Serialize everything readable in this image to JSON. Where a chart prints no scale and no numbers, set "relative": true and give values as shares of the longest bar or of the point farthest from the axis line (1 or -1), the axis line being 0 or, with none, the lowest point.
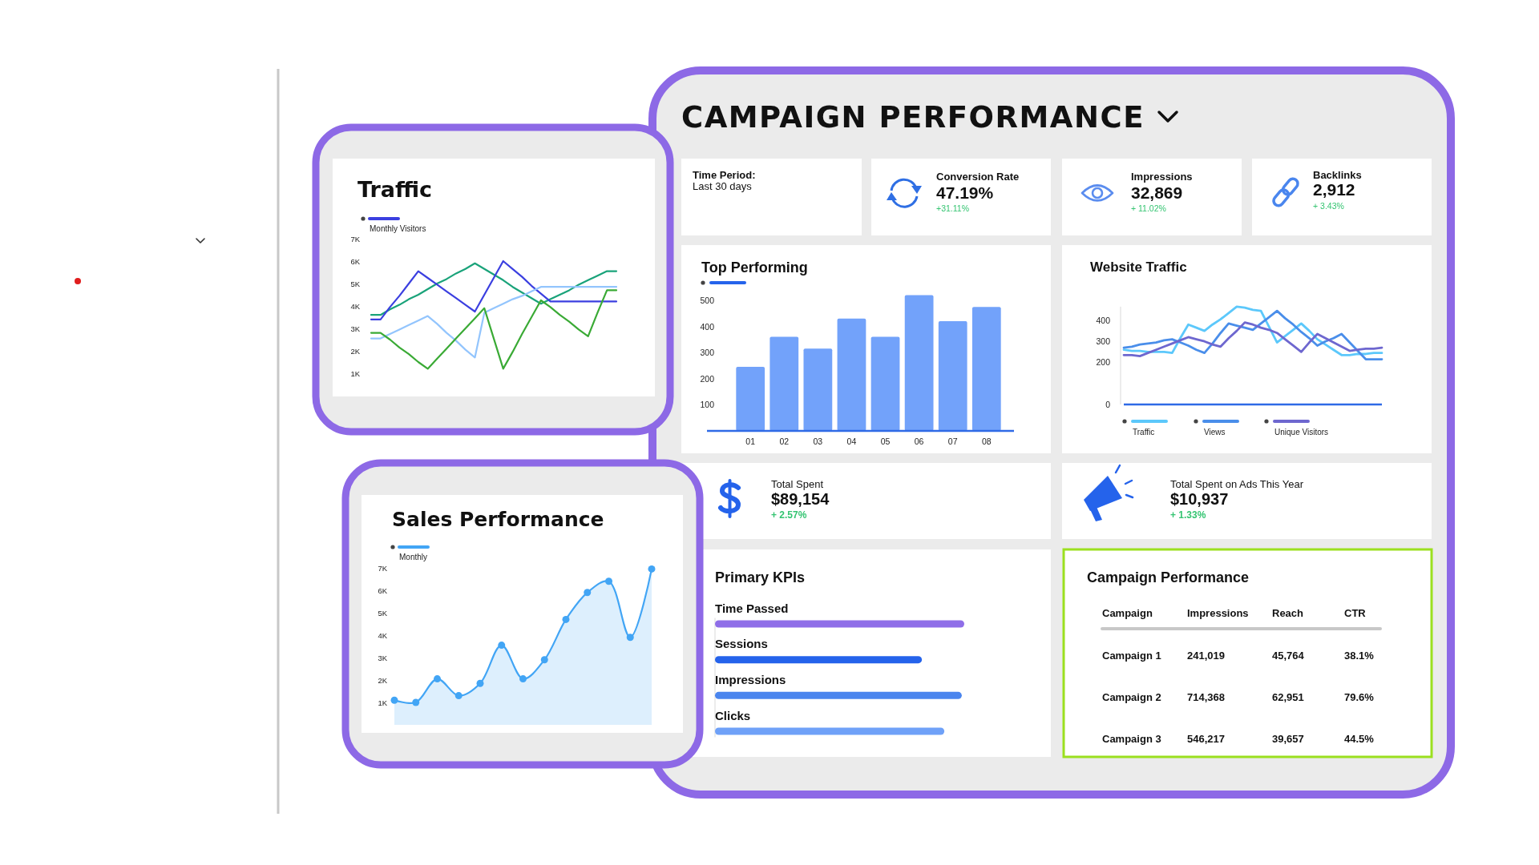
{
  "chart_data": [
    {
      "type": "other",
      "title": "CAMPAIGN PERFORMANCE"
    },
    {
      "type": "line",
      "title": "Traffic",
      "categories": [
        null,
        null,
        null,
        null,
        null,
        null,
        null,
        null,
        null,
        null,
        null,
        null,
        null,
        null,
        null,
        null,
        null,
        null,
        null,
        null,
        null,
        null,
        null,
        null,
        null,
        null,
        null
      ],
      "ylim": [
        1000,
        7000
      ],
      "yticks": [
        {
          "value": 1000,
          "label": "1K"
        },
        {
          "value": 2000,
          "label": "2K"
        },
        {
          "value": 3000,
          "label": "3K"
        },
        {
          "value": 4000,
          "label": "4K"
        },
        {
          "value": 5000,
          "label": "5K"
        },
        {
          "value": 6000,
          "label": "6K"
        },
        {
          "value": 7000,
          "label": "7K"
        }
      ],
      "tick_labels": "y",
      "legend": "top left",
      "series": [
        {
          "color": "#1aa37a",
          "values": [
            3600,
            3600,
            3850,
            4050,
            4300,
            4500,
            4750,
            5000,
            5200,
            5450,
            5650,
            5900,
            5650,
            5400,
            5150,
            4850,
            4600,
            4350,
            4100,
            4300,
            4500,
            4700,
            4950,
            5150,
            5350,
            5550,
            5550
          ]
        },
        {
          "name": "Monthly Visitors",
          "color": "#3b3fe0",
          "values": [
            3400,
            3400,
            3950,
            4450,
            5000,
            5550,
            5250,
            4950,
            4650,
            4350,
            4050,
            3750,
            4500,
            5250,
            6000,
            5650,
            5300,
            4900,
            4550,
            4200,
            4200,
            4200,
            4200,
            4200,
            4200,
            4200,
            4200
          ]
        },
        {
          "color": "#93c5fd",
          "values": [
            2550,
            2550,
            2750,
            2950,
            3150,
            3350,
            3550,
            3200,
            2800,
            2450,
            2050,
            1700,
            3700,
            3900,
            4100,
            4300,
            4450,
            4650,
            4850,
            4850,
            4850,
            4850,
            4850,
            4850,
            4850,
            4850,
            4850
          ]
        },
        {
          "color": "#3aaa35",
          "values": [
            2800,
            2800,
            2500,
            2150,
            1850,
            1500,
            1200,
            1650,
            2100,
            2550,
            3000,
            3450,
            3900,
            2550,
            1200,
            1950,
            2750,
            3500,
            4250,
            3950,
            3600,
            3300,
            2950,
            2650,
            3700,
            4700,
            4700
          ]
        }
      ]
    },
    {
      "type": "area",
      "title": "Sales Performance",
      "categories": [
        null,
        null,
        null,
        null,
        null,
        null,
        null,
        null,
        null,
        null,
        null,
        null,
        null
      ],
      "ylim": [
        0,
        7000
      ],
      "yticks": [
        {
          "value": 1000,
          "label": "1K"
        },
        {
          "value": 2000,
          "label": "2K"
        },
        {
          "value": 3000,
          "label": "3K"
        },
        {
          "value": 4000,
          "label": "4K"
        },
        {
          "value": 5000,
          "label": "5K"
        },
        {
          "value": 6000,
          "label": "6K"
        },
        {
          "value": 7000,
          "label": "7K"
        }
      ],
      "tick_labels": "y",
      "legend": "top left",
      "marker": "circle",
      "series": [
        {
          "name": "Monthly",
          "color": "#42a5f5",
          "values": [
            1100,
            1000,
            2050,
            1300,
            1850,
            3550,
            2050,
            2900,
            4700,
            5900,
            6400,
            3900,
            6950
          ]
        }
      ]
    },
    {
      "type": "other",
      "title": "Time Period:",
      "subtitle": "Last 30 days"
    },
    {
      "type": "other",
      "title": "Conversion Rate",
      "annotations": [
        "47.19%",
        "+31.11%"
      ]
    },
    {
      "type": "other",
      "title": "Impressions",
      "annotations": [
        "32,869",
        "+ 11.02%"
      ]
    },
    {
      "type": "other",
      "title": "Backlinks",
      "annotations": [
        "2,912",
        "+ 3.43%"
      ]
    },
    {
      "type": "bar",
      "title": "Top Performing",
      "categories": [
        "01",
        "02",
        "03",
        "04",
        "05",
        "06",
        "07",
        "08"
      ],
      "values": [
        245,
        360,
        315,
        430,
        360,
        520,
        420,
        475
      ],
      "color": "#72a2fa",
      "ylim": [
        0,
        520
      ],
      "yticks": [
        100,
        200,
        300,
        400,
        500
      ]
    },
    {
      "type": "line",
      "title": "Website Traffic",
      "categories": [
        null,
        null,
        null,
        null,
        null,
        null,
        null,
        null,
        null,
        null,
        null,
        null,
        null,
        null,
        null,
        null,
        null,
        null,
        null,
        null,
        null,
        null,
        null,
        null,
        null,
        null,
        null,
        null,
        null,
        null,
        null,
        null,
        null
      ],
      "ylim": [
        0,
        465
      ],
      "yticks": [
        0,
        200,
        300,
        400
      ],
      "tick_labels": "y",
      "legend": "bottom",
      "series": [
        {
          "name": "Traffic",
          "color": "#5cc8fb",
          "values": [
            260,
            255,
            255,
            250,
            250,
            250,
            245,
            315,
            380,
            365,
            350,
            380,
            405,
            435,
            465,
            460,
            450,
            445,
            370,
            295,
            325,
            355,
            385,
            350,
            310,
            285,
            260,
            235,
            235,
            240,
            240,
            245,
            245
          ]
        },
        {
          "name": "Views",
          "color": "#4a8eea",
          "values": [
            270,
            275,
            285,
            290,
            295,
            305,
            310,
            295,
            280,
            260,
            245,
            290,
            340,
            385,
            375,
            365,
            355,
            385,
            415,
            445,
            410,
            380,
            345,
            315,
            280,
            300,
            315,
            335,
            295,
            255,
            215,
            215,
            215
          ]
        },
        {
          "name": "Unique Visitors",
          "color": "#6e67cf",
          "values": [
            235,
            235,
            230,
            245,
            260,
            275,
            290,
            305,
            320,
            310,
            300,
            285,
            275,
            315,
            350,
            390,
            380,
            365,
            355,
            340,
            310,
            280,
            250,
            295,
            335,
            315,
            295,
            275,
            255,
            260,
            265,
            265,
            270
          ]
        }
      ]
    },
    {
      "type": "other",
      "title": "Total Spent",
      "annotations": [
        "$89,154",
        "+ 2.57%"
      ]
    },
    {
      "type": "other",
      "title": "Total Spent on Ads This Year",
      "annotations": [
        "$10,937",
        "+ 1.33%"
      ]
    },
    {
      "type": "bar",
      "title": "Primary KPIs",
      "orientation": "horizontal",
      "relative": true,
      "categories": [
        "Time Passed",
        "Sessions",
        "Impressions",
        "Clicks"
      ],
      "values": [
        1,
        0.83,
        0.99,
        0.92
      ],
      "colors": [
        "#8f6ee8",
        "#2563eb",
        "#4a85ee",
        "#6fa1f8"
      ]
    },
    {
      "type": "other",
      "title": "Campaign Performance",
      "ylabel": "Campaign",
      "categories": [
        "Impressions",
        "Reach",
        "CTR"
      ],
      "y_categories": [
        "Campaign 1",
        "Campaign 2",
        "Campaign 3"
      ],
      "cell_labels": [
        [
          "241,019",
          "45,764",
          "38.1%"
        ],
        [
          "714,368",
          "62,951",
          "79.6%"
        ],
        [
          "546,217",
          "39,657",
          "44.5%"
        ]
      ]
    }
  ]
}
